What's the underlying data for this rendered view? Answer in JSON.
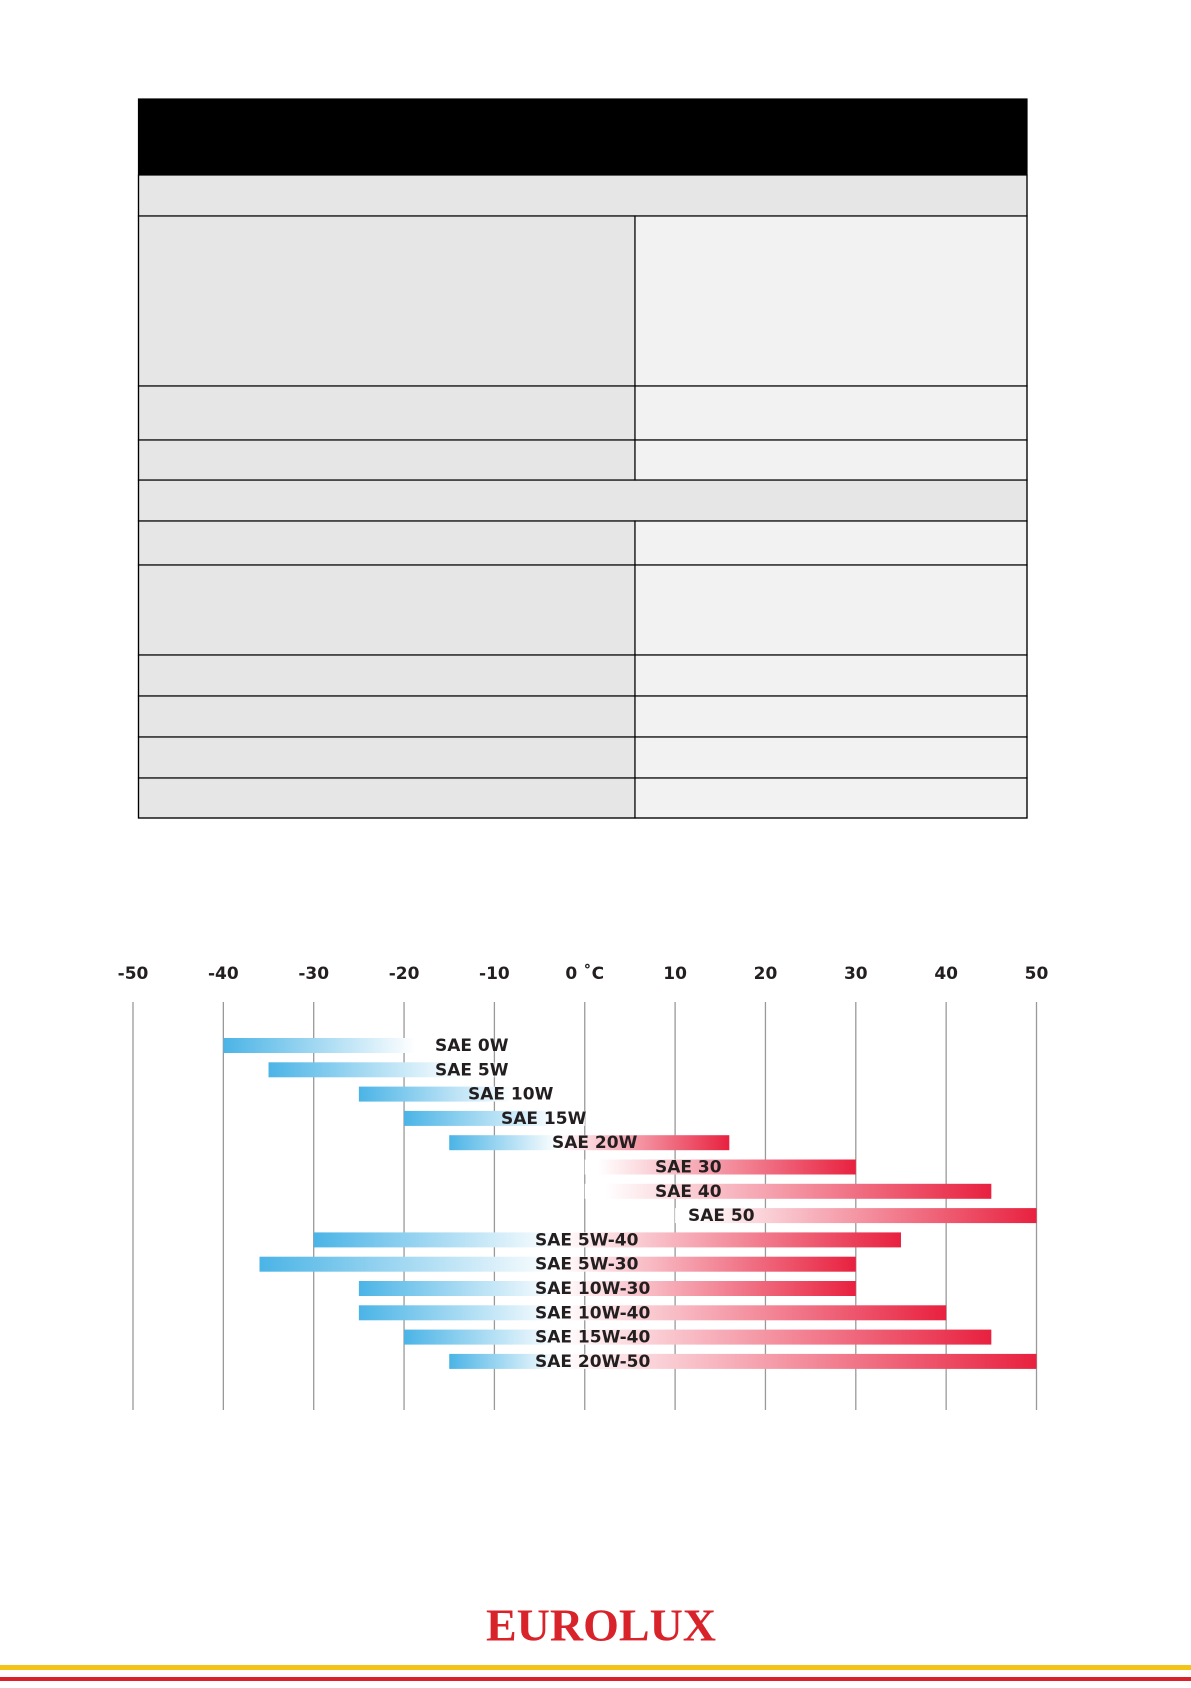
{
  "chart_data": {
    "type": "range-bar",
    "categories": [
      "SAE 0W",
      "SAE 5W",
      "SAE 10W",
      "SAE 15W",
      "SAE 20W",
      "SAE 30",
      "SAE 40",
      "SAE 50",
      "SAE 5W-40",
      "SAE 5W-30",
      "SAE 10W-30",
      "SAE 10W-40",
      "SAE 15W-40",
      "SAE 20W-50"
    ],
    "low": [
      -40,
      -35,
      -25,
      -20,
      -15,
      0,
      0,
      10,
      -30,
      -36,
      -25,
      -25,
      -20,
      -15
    ],
    "high": [
      -15,
      -10,
      -5,
      0,
      16,
      30,
      45,
      50,
      35,
      30,
      30,
      40,
      45,
      50
    ],
    "cold_color": "#4bb4e6",
    "hot_color": "#e8213f",
    "xlim": [
      -50,
      50
    ],
    "xticks": [
      -50,
      -40,
      -30,
      -20,
      -10,
      {
        "value": 0,
        "label": "0 ˚C"
      },
      10,
      20,
      30,
      40,
      50
    ],
    "grid": true
  },
  "footer": {
    "brand": "EUROLUX"
  }
}
